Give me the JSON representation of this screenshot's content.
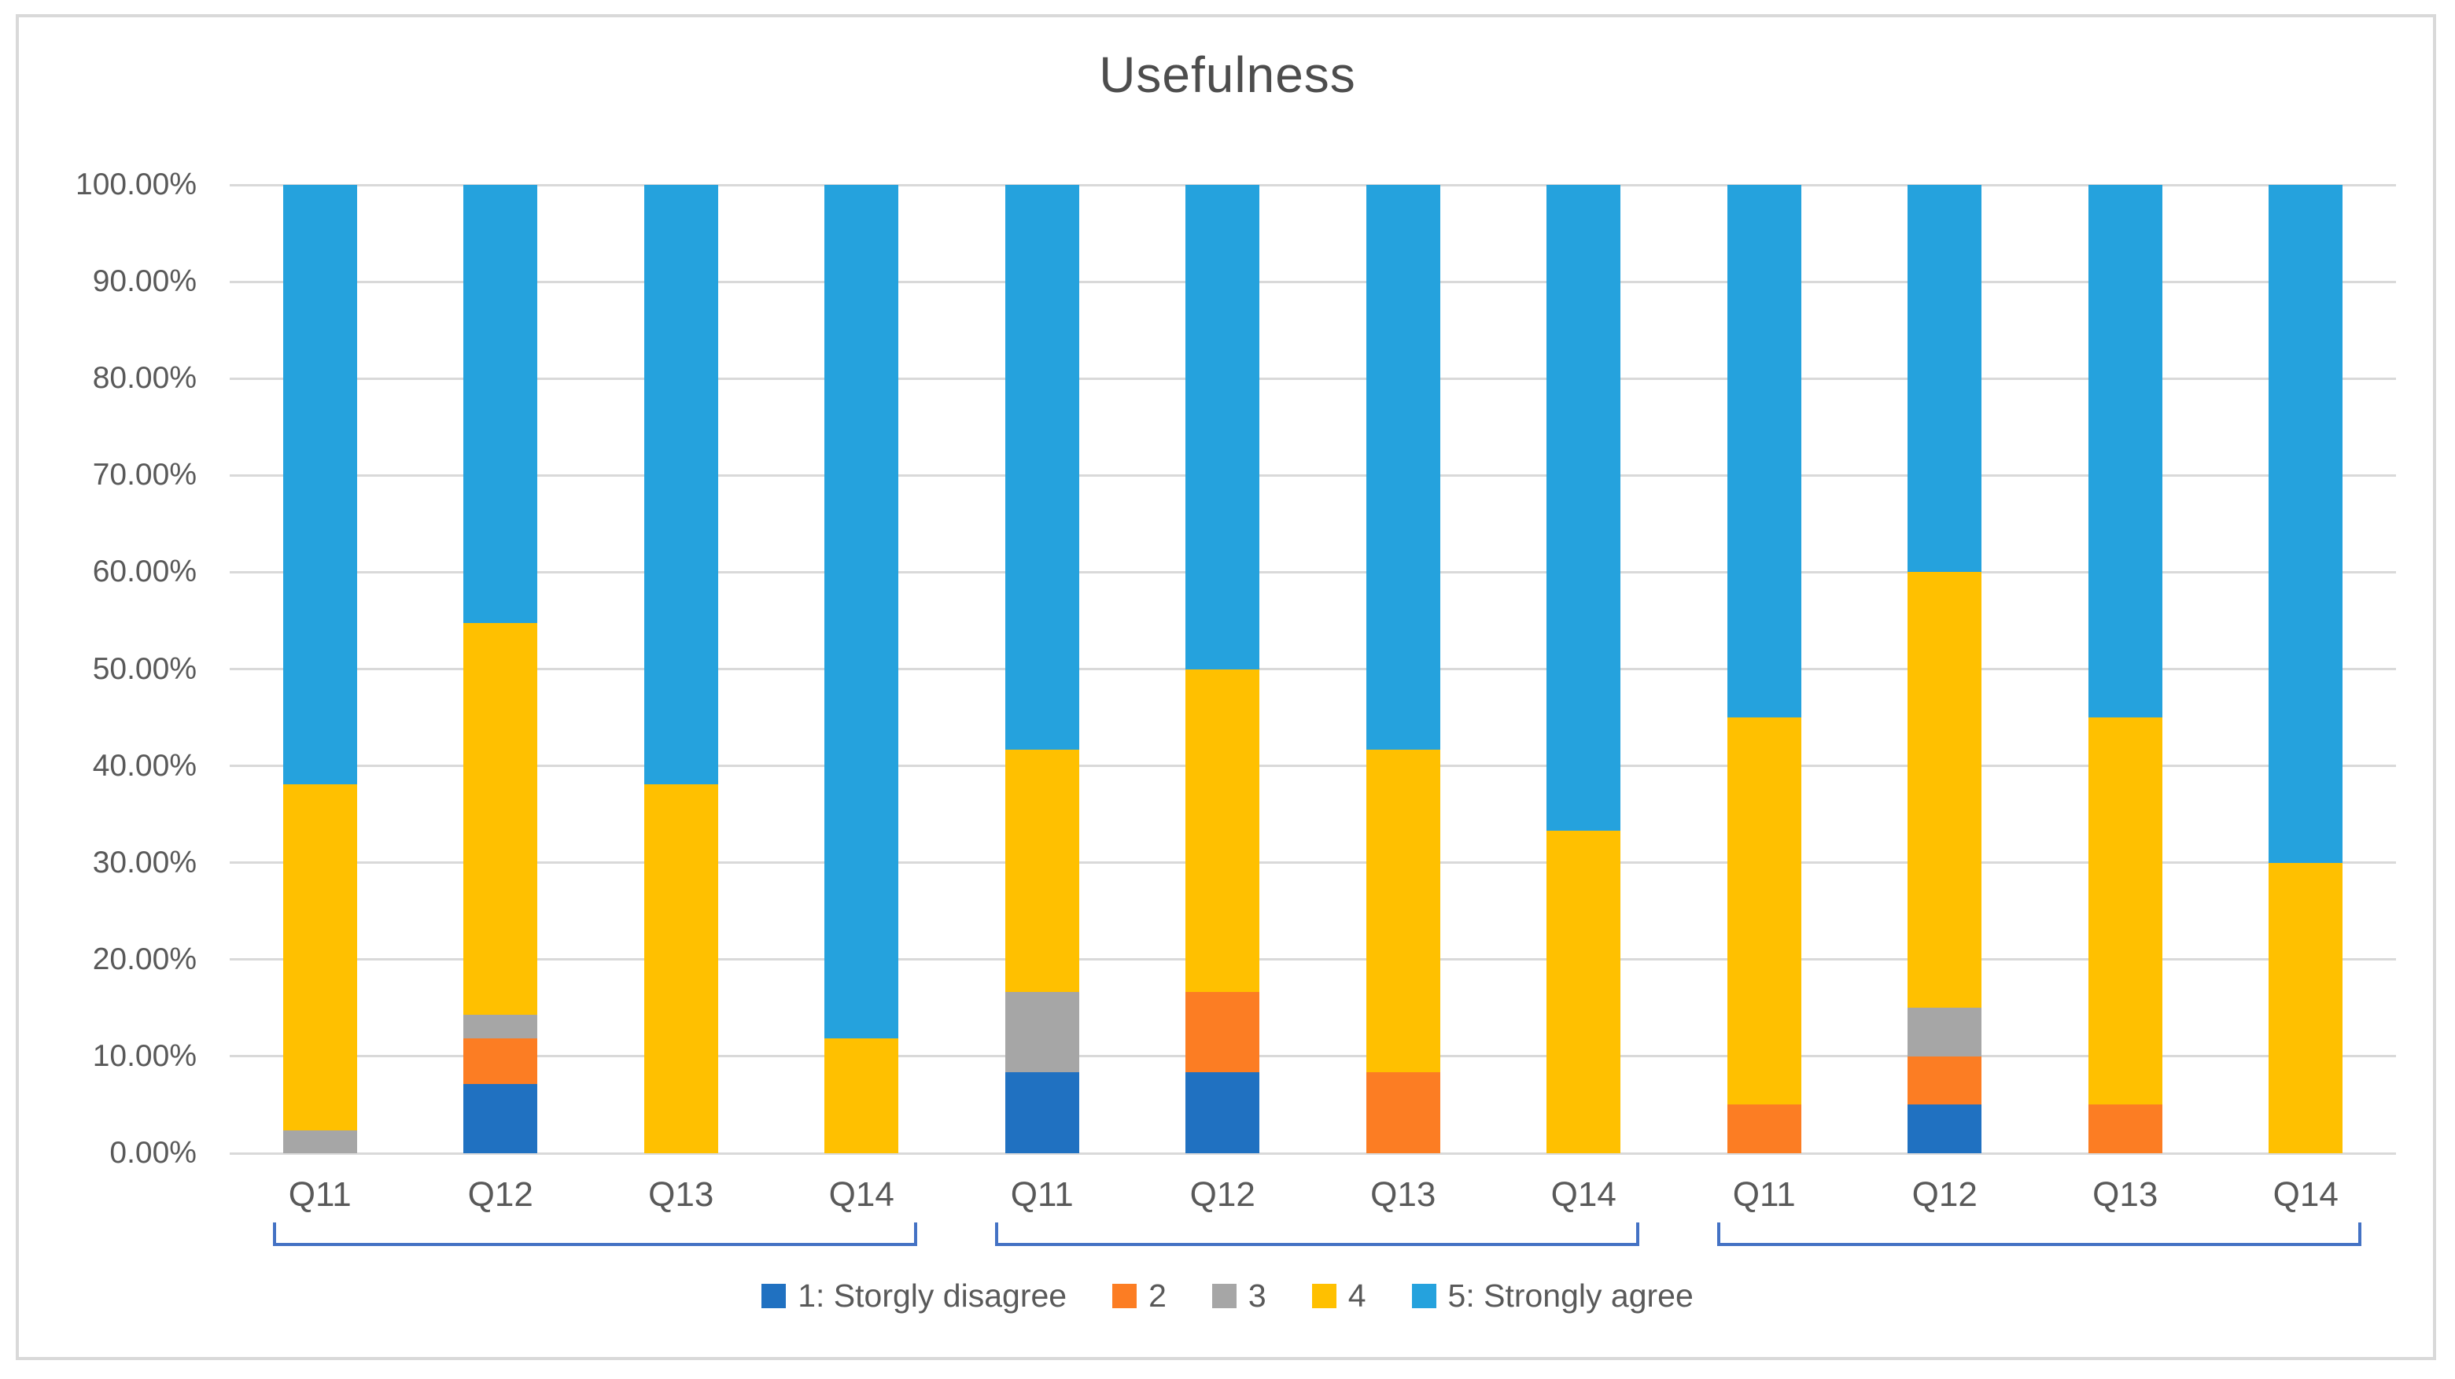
{
  "title": "Usefulness",
  "chart_data": {
    "type": "bar",
    "stacked": true,
    "percent_stacked": true,
    "title": "Usefulness",
    "grid": true,
    "legend_position": "bottom",
    "y_axis": {
      "min": 0,
      "max": 100,
      "step": 10,
      "tick_labels": [
        "0.00%",
        "10.00%",
        "20.00%",
        "30.00%",
        "40.00%",
        "50.00%",
        "60.00%",
        "70.00%",
        "80.00%",
        "90.00%",
        "100.00%"
      ]
    },
    "categories": [
      "Q11",
      "Q12",
      "Q13",
      "Q14",
      "Q11",
      "Q12",
      "Q13",
      "Q14",
      "Q11",
      "Q12",
      "Q13",
      "Q14"
    ],
    "groups": [
      {
        "label": "",
        "category_indexes": [
          0,
          1,
          2,
          3
        ]
      },
      {
        "label": "",
        "category_indexes": [
          4,
          5,
          6,
          7
        ]
      },
      {
        "label": "",
        "category_indexes": [
          8,
          9,
          10,
          11
        ]
      }
    ],
    "series": [
      {
        "name": "1: Storgly disagree",
        "color": "#2071C1",
        "values": [
          0,
          7.14,
          0,
          0,
          8.33,
          8.33,
          0,
          0,
          0,
          5,
          0,
          0
        ]
      },
      {
        "name": "2",
        "color": "#FC7D23",
        "values": [
          0,
          4.76,
          0,
          0,
          0,
          8.33,
          8.33,
          0,
          5,
          5,
          5,
          0
        ]
      },
      {
        "name": "3",
        "color": "#A6A6A6",
        "values": [
          2.38,
          2.38,
          0,
          0,
          8.33,
          0,
          0,
          0,
          0,
          5,
          0,
          0
        ]
      },
      {
        "name": "4",
        "color": "#FFC000",
        "values": [
          35.71,
          40.48,
          38.1,
          11.9,
          25.0,
          33.34,
          33.34,
          33.33,
          40,
          45,
          40,
          30
        ]
      },
      {
        "name": "5: Strongly agree",
        "color": "#25A2DD",
        "values": [
          61.91,
          45.24,
          61.9,
          88.1,
          58.34,
          50.0,
          58.33,
          66.67,
          55,
          40,
          55,
          70
        ]
      }
    ],
    "colors": {
      "gridline": "#D9D9D9",
      "frame_border": "#D9D9D9",
      "axis_text": "#595959",
      "title_text": "#4D4D4D",
      "bracket": "#4472C4"
    }
  }
}
